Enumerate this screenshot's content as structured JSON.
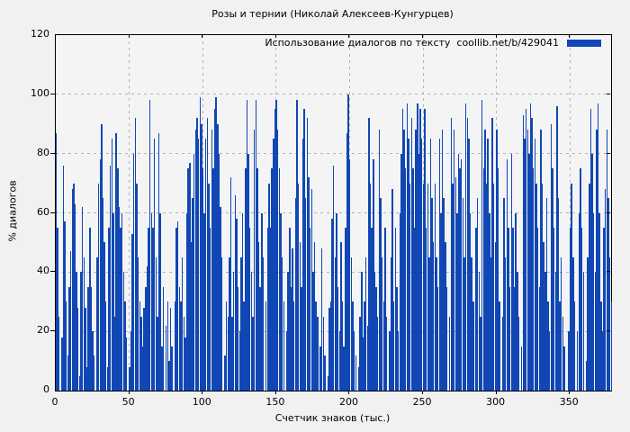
{
  "chart_data": {
    "type": "bar",
    "style": "impulses",
    "title": "Розы и тернии (Николай Алексеев-Кунгурцев)",
    "xlabel": "Счетчик знаков (тыс.)",
    "ylabel": "% диалогов",
    "legend": "Использование диалогов по тексту  coollib.net/b/429041",
    "legend_position": "top-right-inside",
    "grid": true,
    "xlim": [
      0,
      378
    ],
    "ylim": [
      0,
      120
    ],
    "xticks": [
      0,
      50,
      100,
      150,
      200,
      250,
      300,
      350
    ],
    "yticks": [
      0,
      20,
      40,
      60,
      80,
      100,
      120
    ],
    "x_start": 0,
    "x_step": 1,
    "values": [
      87,
      55,
      25,
      0,
      18,
      76,
      57,
      30,
      12,
      35,
      47,
      68,
      70,
      63,
      40,
      28,
      5,
      40,
      62,
      45,
      28,
      8,
      35,
      55,
      35,
      20,
      12,
      0,
      45,
      70,
      78,
      90,
      65,
      50,
      30,
      8,
      55,
      76,
      85,
      60,
      25,
      87,
      75,
      62,
      55,
      60,
      40,
      30,
      18,
      0,
      8,
      20,
      53,
      80,
      92,
      70,
      45,
      30,
      25,
      15,
      28,
      35,
      42,
      55,
      98,
      60,
      55,
      85,
      45,
      25,
      87,
      60,
      15,
      35,
      0,
      22,
      30,
      10,
      28,
      15,
      0,
      30,
      55,
      57,
      35,
      30,
      45,
      25,
      18,
      60,
      75,
      77,
      50,
      65,
      80,
      88,
      92,
      85,
      99,
      90,
      75,
      60,
      85,
      92,
      70,
      55,
      88,
      75,
      95,
      99,
      90,
      80,
      62,
      45,
      0,
      12,
      30,
      25,
      45,
      72,
      25,
      40,
      66,
      58,
      35,
      20,
      45,
      60,
      30,
      75,
      98,
      80,
      55,
      40,
      25,
      88,
      98,
      75,
      50,
      35,
      60,
      45,
      0,
      30,
      55,
      70,
      55,
      75,
      85,
      95,
      98,
      88,
      75,
      60,
      45,
      30,
      0,
      20,
      40,
      55,
      35,
      48,
      30,
      65,
      98,
      70,
      50,
      35,
      85,
      95,
      65,
      92,
      72,
      55,
      68,
      40,
      50,
      30,
      25,
      0,
      15,
      48,
      25,
      12,
      0,
      5,
      28,
      30,
      58,
      76,
      45,
      60,
      35,
      20,
      50,
      30,
      15,
      55,
      87,
      100,
      78,
      45,
      30,
      20,
      12,
      0,
      8,
      25,
      40,
      18,
      30,
      45,
      22,
      92,
      70,
      55,
      78,
      40,
      35,
      25,
      88,
      65,
      45,
      30,
      55,
      25,
      0,
      20,
      45,
      68,
      30,
      55,
      35,
      20,
      60,
      80,
      95,
      88,
      75,
      97,
      85,
      70,
      92,
      75,
      55,
      88,
      97,
      80,
      95,
      85,
      70,
      95,
      55,
      70,
      45,
      85,
      65,
      50,
      70,
      45,
      35,
      85,
      60,
      88,
      65,
      50,
      35,
      0,
      25,
      92,
      70,
      88,
      72,
      60,
      80,
      75,
      78,
      65,
      45,
      97,
      92,
      85,
      60,
      45,
      30,
      0,
      55,
      65,
      40,
      25,
      98,
      75,
      88,
      70,
      85,
      60,
      45,
      92,
      70,
      50,
      88,
      75,
      30,
      0,
      25,
      65,
      45,
      78,
      55,
      35,
      80,
      55,
      35,
      60,
      40,
      25,
      0,
      15,
      93,
      85,
      95,
      88,
      80,
      97,
      92,
      75,
      85,
      70,
      55,
      35,
      88,
      70,
      50,
      40,
      65,
      30,
      20,
      90,
      75,
      55,
      40,
      96,
      65,
      30,
      45,
      25,
      15,
      0,
      0,
      20,
      55,
      70,
      45,
      30,
      0,
      20,
      60,
      75,
      55,
      40,
      0,
      10,
      45,
      70,
      95,
      80,
      60,
      40,
      88,
      97,
      60,
      30,
      20,
      55,
      68,
      88,
      65,
      45,
      30
    ],
    "colors": {
      "bar": "#1047b4",
      "background": "#f1f1f1",
      "plot_background": "#f4f4f4",
      "grid": "#b3b3b3",
      "frame": "#000000",
      "text": "#000000"
    }
  }
}
